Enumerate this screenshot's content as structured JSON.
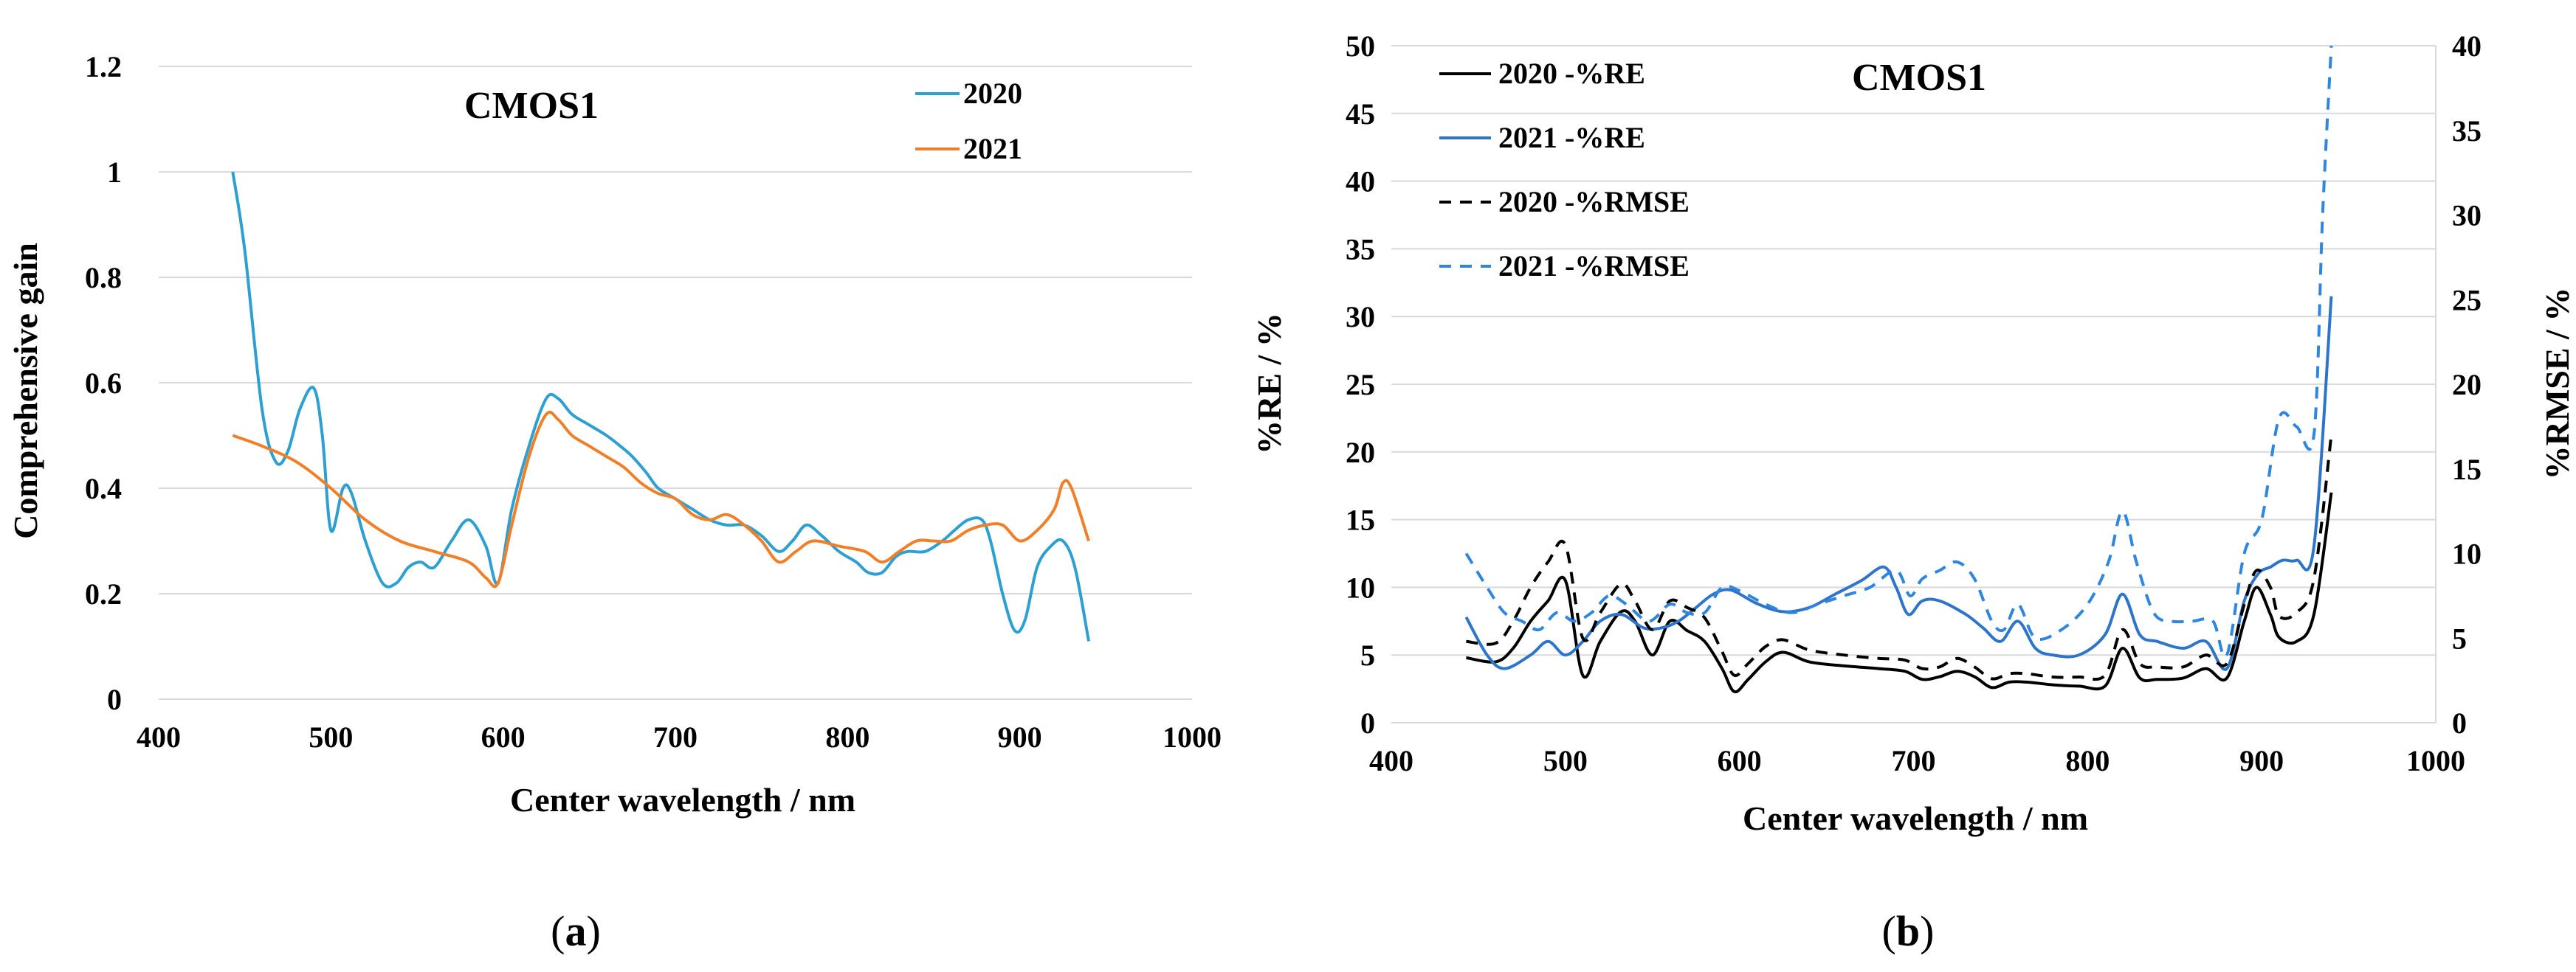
{
  "colors": {
    "c2020_a": "#2e9fd1",
    "c2021_a": "#f07f2a",
    "black": "#000000",
    "blue_b": "#2e75c9",
    "blue_dash_b": "#2e86de",
    "grid": "#d9d9d9"
  },
  "chart_data": [
    {
      "type": "line",
      "panel_label": "(a)",
      "panel_letter": "a",
      "title": "CMOS1",
      "xlabel": "Center wavelength / nm",
      "ylabel": "Comprehensive gain",
      "xlim": [
        400,
        1000
      ],
      "ylim": [
        0,
        1.2
      ],
      "xticks": [
        "400",
        "500",
        "600",
        "700",
        "800",
        "900",
        "1000"
      ],
      "yticks": [
        "0",
        "0.2",
        "0.4",
        "0.6",
        "0.8",
        "1",
        "1.2"
      ],
      "legend_position": "top-right",
      "series": [
        {
          "name": "2020",
          "color": "#2e9fd1",
          "x": [
            443,
            450,
            460,
            468,
            475,
            482,
            490,
            495,
            500,
            507,
            512,
            520,
            530,
            538,
            545,
            552,
            560,
            570,
            580,
            590,
            597,
            605,
            615,
            625,
            632,
            640,
            650,
            660,
            668,
            675,
            683,
            690,
            700,
            710,
            720,
            730,
            740,
            750,
            760,
            768,
            776,
            785,
            795,
            805,
            812,
            820,
            828,
            835,
            845,
            855,
            862,
            870,
            878,
            883,
            890,
            897,
            903,
            910,
            918,
            925,
            932,
            940
          ],
          "values": [
            1.0,
            0.85,
            0.55,
            0.45,
            0.47,
            0.55,
            0.59,
            0.5,
            0.32,
            0.4,
            0.39,
            0.3,
            0.22,
            0.22,
            0.25,
            0.26,
            0.25,
            0.3,
            0.34,
            0.29,
            0.22,
            0.36,
            0.48,
            0.57,
            0.57,
            0.54,
            0.52,
            0.5,
            0.48,
            0.46,
            0.43,
            0.4,
            0.38,
            0.36,
            0.34,
            0.33,
            0.33,
            0.31,
            0.28,
            0.3,
            0.33,
            0.31,
            0.28,
            0.26,
            0.24,
            0.24,
            0.27,
            0.28,
            0.28,
            0.3,
            0.32,
            0.34,
            0.34,
            0.3,
            0.2,
            0.13,
            0.15,
            0.25,
            0.29,
            0.3,
            0.25,
            0.11
          ]
        },
        {
          "name": "2021",
          "color": "#f07f2a",
          "x": [
            443,
            460,
            480,
            500,
            520,
            540,
            560,
            580,
            590,
            597,
            605,
            615,
            625,
            632,
            640,
            650,
            660,
            670,
            680,
            690,
            700,
            710,
            720,
            730,
            740,
            750,
            760,
            770,
            780,
            795,
            810,
            820,
            830,
            840,
            850,
            860,
            870,
            880,
            890,
            900,
            910,
            920,
            925,
            930,
            940
          ],
          "values": [
            0.5,
            0.48,
            0.45,
            0.4,
            0.34,
            0.3,
            0.28,
            0.26,
            0.23,
            0.22,
            0.33,
            0.46,
            0.54,
            0.53,
            0.5,
            0.48,
            0.46,
            0.44,
            0.41,
            0.39,
            0.38,
            0.35,
            0.34,
            0.35,
            0.33,
            0.3,
            0.26,
            0.28,
            0.3,
            0.29,
            0.28,
            0.26,
            0.28,
            0.3,
            0.3,
            0.3,
            0.32,
            0.33,
            0.33,
            0.3,
            0.32,
            0.36,
            0.41,
            0.4,
            0.3
          ]
        }
      ]
    },
    {
      "type": "line",
      "panel_label": "(b)",
      "panel_letter": "b",
      "title": "CMOS1",
      "xlabel": "Center wavelength / nm",
      "ylabel_left": "%RE / %",
      "ylabel_right": "%RMSE / %",
      "xlim": [
        400,
        1000
      ],
      "ylim_left": [
        0,
        50
      ],
      "ylim_right": [
        0,
        40
      ],
      "xticks": [
        "400",
        "500",
        "600",
        "700",
        "800",
        "900",
        "1000"
      ],
      "yticks_left": [
        "0",
        "5",
        "10",
        "15",
        "20",
        "25",
        "30",
        "35",
        "40",
        "45",
        "50"
      ],
      "yticks_right": [
        "0",
        "5",
        "10",
        "15",
        "20",
        "25",
        "30",
        "35",
        "40"
      ],
      "legend_position": "top-left",
      "series": [
        {
          "name": "2020 -%RE",
          "axis": "left",
          "style": "solid",
          "color": "#000000",
          "x": [
            443,
            460,
            470,
            480,
            490,
            500,
            510,
            520,
            532,
            540,
            550,
            560,
            570,
            580,
            590,
            597,
            605,
            615,
            625,
            640,
            660,
            680,
            695,
            705,
            715,
            725,
            735,
            745,
            755,
            765,
            780,
            795,
            810,
            820,
            830,
            840,
            855,
            868,
            880,
            890,
            897,
            905,
            910,
            920,
            930,
            940
          ],
          "values": [
            4.8,
            4.5,
            5.5,
            7.5,
            9,
            10.5,
            3.5,
            6,
            8.2,
            7.5,
            5,
            7.5,
            6.8,
            6,
            4,
            2.3,
            3.2,
            4.5,
            5.2,
            4.5,
            4.2,
            4,
            3.8,
            3.2,
            3.4,
            3.8,
            3.4,
            2.6,
            3,
            3,
            2.8,
            2.7,
            2.7,
            5.5,
            3.3,
            3.2,
            3.3,
            4,
            3.3,
            7.5,
            10,
            8,
            6.3,
            6,
            8,
            17
          ]
        },
        {
          "name": "2021 -%RE",
          "axis": "left",
          "style": "solid",
          "color": "#2e75c9",
          "x": [
            443,
            455,
            465,
            480,
            490,
            500,
            510,
            520,
            532,
            545,
            555,
            565,
            575,
            585,
            595,
            610,
            625,
            640,
            655,
            670,
            683,
            690,
            697,
            705,
            715,
            730,
            740,
            750,
            760,
            770,
            780,
            795,
            810,
            820,
            830,
            840,
            855,
            868,
            880,
            890,
            898,
            905,
            912,
            920,
            930,
            940
          ],
          "values": [
            7.8,
            5,
            4,
            5,
            6,
            5,
            6,
            7.5,
            8,
            7,
            7,
            7.5,
            8.5,
            9.5,
            9.8,
            8.8,
            8.2,
            8.5,
            9.5,
            10.5,
            11.5,
            10,
            8,
            9,
            9,
            8,
            7,
            6,
            7.5,
            5.5,
            5,
            5,
            6.5,
            9.5,
            6.5,
            6,
            5.5,
            6,
            4,
            9,
            11,
            11.5,
            12,
            12,
            13,
            31.5
          ]
        },
        {
          "name": "2020 -%RMSE",
          "axis": "right",
          "style": "dashed",
          "color": "#000000",
          "x": [
            443,
            460,
            470,
            480,
            490,
            500,
            510,
            520,
            532,
            540,
            550,
            560,
            570,
            580,
            590,
            597,
            605,
            615,
            625,
            640,
            660,
            680,
            695,
            705,
            715,
            725,
            735,
            745,
            755,
            765,
            780,
            795,
            810,
            820,
            830,
            840,
            855,
            868,
            880,
            890,
            897,
            905,
            910,
            920,
            930,
            940
          ],
          "values": [
            4.8,
            4.7,
            6,
            8,
            9.5,
            10.5,
            5,
            6.5,
            8.2,
            7.2,
            5.5,
            7.2,
            6.8,
            6.2,
            4.2,
            2.8,
            3.5,
            4.5,
            4.9,
            4.3,
            4,
            3.8,
            3.7,
            3.2,
            3.3,
            3.8,
            3.3,
            2.6,
            2.9,
            2.9,
            2.7,
            2.7,
            2.8,
            5.5,
            3.5,
            3.3,
            3.3,
            4,
            3.5,
            7,
            9,
            8,
            6.3,
            6.5,
            8.5,
            17
          ]
        },
        {
          "name": "2021 -%RMSE",
          "axis": "right",
          "style": "dashed",
          "color": "#2e86de",
          "x": [
            443,
            455,
            465,
            475,
            485,
            495,
            505,
            515,
            525,
            535,
            548,
            560,
            570,
            580,
            590,
            600,
            615,
            630,
            645,
            660,
            675,
            690,
            698,
            705,
            715,
            725,
            735,
            745,
            752,
            760,
            770,
            785,
            800,
            812,
            820,
            828,
            838,
            848,
            860,
            872,
            880,
            890,
            900,
            910,
            920,
            930,
            935,
            940
          ],
          "values": [
            10,
            8,
            6.5,
            6,
            5.5,
            6.5,
            6,
            6.5,
            7.5,
            7,
            6,
            7,
            6.5,
            6.5,
            8,
            7.8,
            7,
            6.5,
            7,
            7.5,
            8,
            9,
            7.5,
            8.5,
            9,
            9.5,
            8.5,
            6,
            5.5,
            7,
            5,
            5.5,
            7,
            9.5,
            12.5,
            9.5,
            6.5,
            6,
            6,
            6,
            4,
            10,
            12,
            18,
            17.5,
            17,
            30,
            40
          ]
        }
      ]
    }
  ]
}
